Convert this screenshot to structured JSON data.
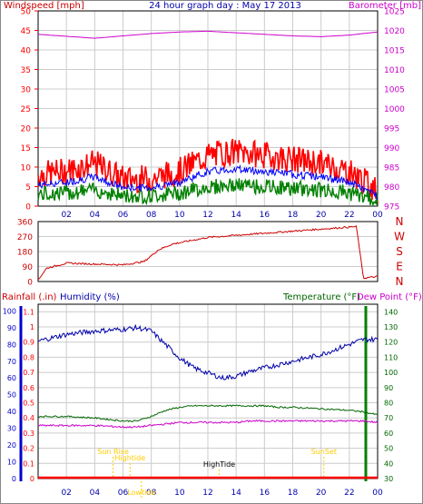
{
  "header": {
    "wind_label": "Windspeed [mph]",
    "title": "24 hour graph day : May 17 2013",
    "baro_label": "Barometer [mb]"
  },
  "direction_labels": [
    "N",
    "W",
    "S",
    "E",
    "N"
  ],
  "bottom_header": {
    "rain_label": "Rainfall (.in)",
    "humidity_label": "Humidity (%)",
    "temp_label": "Temperature (°F)",
    "dew_label": "Dew Point (°F)"
  },
  "annotations": [
    "Sun Rise",
    "Hightide",
    "Lowtide",
    "HighTide",
    "SunSet"
  ],
  "colors": {
    "wind": "#ff0000",
    "avg_wind": "#0000ff",
    "gust": "#008000",
    "barometer": "#cc00cc",
    "direction": "#cc0000",
    "rain": "#ff0000",
    "humidity": "#0000aa",
    "temperature": "#006600",
    "dewpoint": "#cc00cc",
    "annotation": "#ffcc00"
  },
  "chart_data": [
    {
      "type": "line",
      "title": "24 hour graph day : May 17 2013",
      "x_ticks": [
        "02",
        "04",
        "06",
        "08",
        "10",
        "12",
        "14",
        "16",
        "18",
        "20",
        "22",
        "00"
      ],
      "y_left_ticks": [
        "0",
        "5",
        "10",
        "15",
        "20",
        "25",
        "30",
        "35",
        "40",
        "45",
        "50"
      ],
      "y_right_ticks": [
        "975",
        "980",
        "985",
        "990",
        "995",
        "1000",
        "1005",
        "1010",
        "1015",
        "1020",
        "1025"
      ],
      "ylabel": "Windspeed [mph]",
      "ylabel_right": "Barometer [mb]",
      "ylim": [
        0,
        50
      ],
      "ylim_right": [
        975,
        1025
      ],
      "x_hours": [
        0,
        2,
        4,
        6,
        8,
        10,
        12,
        14,
        16,
        18,
        20,
        22,
        24
      ],
      "series": [
        {
          "name": "Windspeed [mph]",
          "values": [
            8,
            9,
            11,
            7,
            7,
            9,
            13,
            14,
            13,
            12,
            11,
            9,
            4
          ]
        },
        {
          "name": "Barometer [mb]",
          "values": [
            1019,
            1018.5,
            1018,
            1018.6,
            1019.2,
            1019.6,
            1019.8,
            1019.4,
            1019,
            1018.6,
            1018.4,
            1018.8,
            1019.6
          ]
        }
      ],
      "grid": true
    },
    {
      "type": "line",
      "y_left_ticks": [
        "0",
        "90",
        "180",
        "270",
        "360"
      ],
      "ylim": [
        0,
        360
      ],
      "x_hours": [
        0,
        0.6,
        2,
        4,
        6,
        7.5,
        8.5,
        9.5,
        12,
        16,
        20,
        22.5,
        23,
        23.5,
        24
      ],
      "values": [
        10,
        80,
        110,
        105,
        100,
        120,
        190,
        225,
        265,
        290,
        315,
        330,
        20,
        25,
        30
      ],
      "grid": true
    },
    {
      "type": "line",
      "x_ticks": [
        "02",
        "04",
        "06",
        "08",
        "10",
        "12",
        "14",
        "16",
        "18",
        "20",
        "22",
        "00"
      ],
      "y_rain_ticks": [
        "0",
        "0.1",
        "0.2",
        "0.3",
        "0.4",
        "0.5",
        "0.6",
        "0.7",
        "0.8",
        "0.9",
        "1",
        "1.1"
      ],
      "y_humidity_ticks": [
        "0",
        "10",
        "20",
        "30",
        "40",
        "50",
        "60",
        "70",
        "80",
        "90",
        "100"
      ],
      "y_temp_ticks": [
        "30",
        "40",
        "50",
        "60",
        "70",
        "80",
        "90",
        "100",
        "110",
        "120",
        "130",
        "140"
      ],
      "ylim_rain": [
        0,
        1.15
      ],
      "ylim_humidity": [
        0,
        104
      ],
      "ylim_temp": [
        30,
        145
      ],
      "x_hours": [
        0,
        2,
        4,
        6,
        7,
        8,
        9,
        10,
        11,
        12,
        13,
        14,
        15,
        16,
        17,
        18,
        20,
        22,
        23,
        24
      ],
      "series": [
        {
          "name": "Humidity (%)",
          "values": [
            82,
            86,
            88,
            89,
            90,
            88,
            80,
            72,
            66,
            63,
            60,
            61,
            64,
            66,
            68,
            70,
            74,
            80,
            83,
            83
          ]
        },
        {
          "name": "Temperature (°F)",
          "values": [
            71,
            71,
            70,
            68,
            68,
            71,
            75,
            77,
            78,
            78,
            78,
            78,
            78,
            78,
            77,
            77,
            76,
            75,
            74,
            72
          ]
        },
        {
          "name": "Dew Point (°F)",
          "values": [
            65,
            65,
            65,
            64,
            64,
            65,
            66,
            67,
            67,
            67,
            67,
            67,
            68,
            68,
            68,
            68,
            68,
            68,
            68,
            67
          ]
        },
        {
          "name": "Rainfall (.in)",
          "values": [
            0,
            0,
            0,
            0,
            0,
            0,
            0,
            0,
            0,
            0,
            0,
            0,
            0,
            0,
            0,
            0,
            0,
            0,
            0,
            0
          ]
        }
      ],
      "annotation_hours": [
        5.3,
        6.5,
        7.3,
        12.8,
        20.2
      ],
      "grid": true
    }
  ]
}
